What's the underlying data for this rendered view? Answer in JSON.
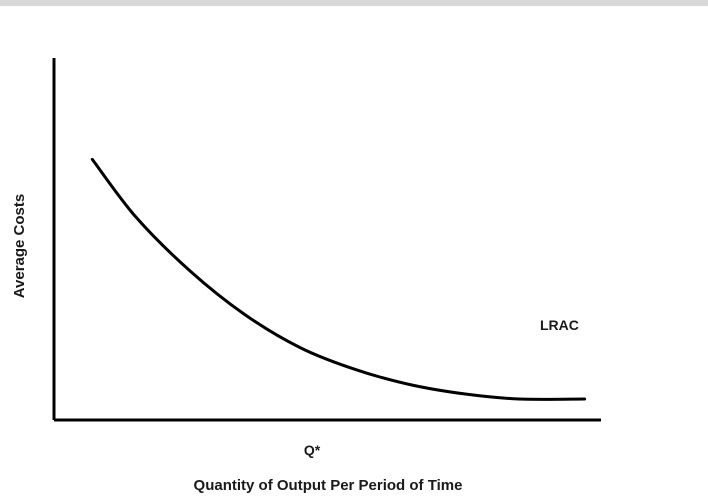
{
  "chart_data": {
    "type": "line",
    "xlabel": "Quantity of Output Per Period of Time",
    "ylabel": "Average Costs",
    "xlim": [
      0,
      10
    ],
    "ylim": [
      0,
      10
    ],
    "x_tick_labels": [
      "Q*"
    ],
    "series": [
      {
        "name": "LRAC",
        "x": [
          0.7,
          1.5,
          2.5,
          3.5,
          4.5,
          5.5,
          6.5,
          7.5,
          8.5,
          9.7
        ],
        "y": [
          7.2,
          5.6,
          4.1,
          2.9,
          2.0,
          1.4,
          0.98,
          0.72,
          0.58,
          0.58
        ]
      }
    ],
    "grid": false,
    "colors": {
      "line": "#000000",
      "axis": "#000000"
    }
  }
}
